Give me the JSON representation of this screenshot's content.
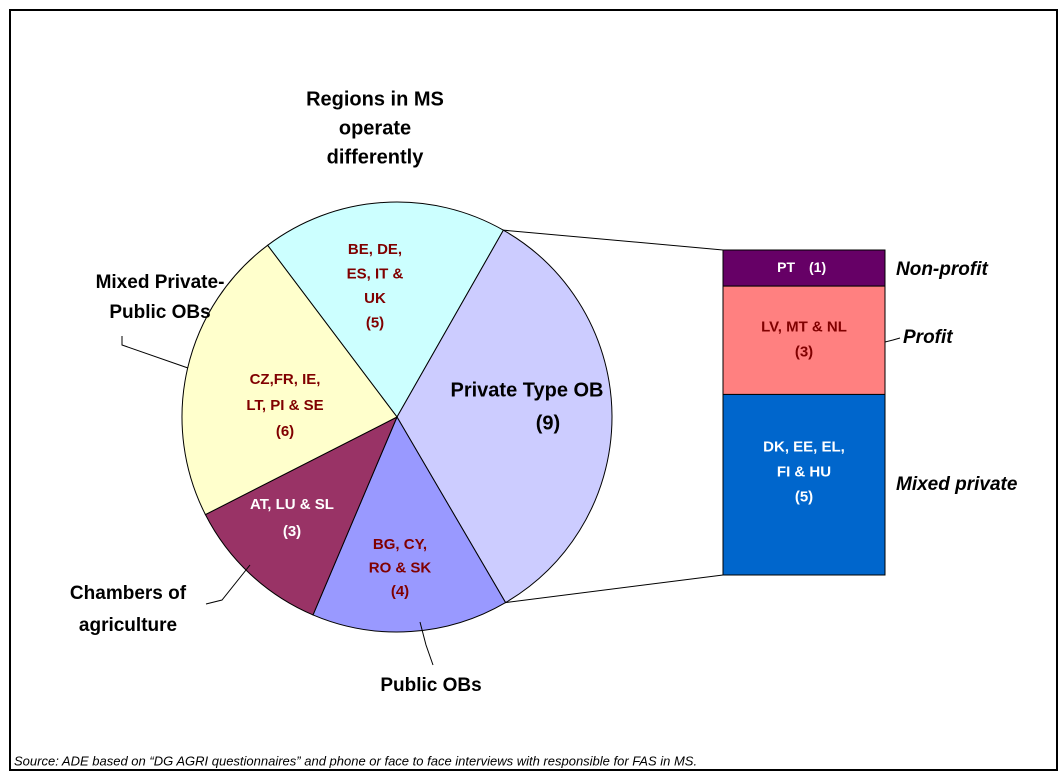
{
  "chart_data": {
    "type": "bar-of-pie",
    "categories": [
      [
        "Regions in MS",
        "operate",
        "differently"
      ],
      [
        "Private Type OB"
      ],
      [
        "Public OBs"
      ],
      [
        "Chambers of",
        "agriculture"
      ],
      [
        "Mixed Private-",
        "Public OBs"
      ]
    ],
    "values": [
      5,
      9,
      4,
      3,
      6
    ],
    "value_labels": [
      "(5)",
      "(9)",
      "(4)",
      "(3)",
      "(6)"
    ],
    "slice_labels": [
      [
        "BE, DE,",
        "ES, IT &",
        "UK"
      ],
      [],
      [
        "BG, CY,",
        "RO & SK"
      ],
      [
        "AT, LU & SL"
      ],
      [
        "CZ,FR, IE,",
        "LT, PI & SE"
      ]
    ],
    "colors": [
      "#ccffff",
      "#ccccff",
      "#9999ff",
      "#993366",
      "#ffffcc"
    ],
    "breakdown": {
      "of": 1,
      "categories": [
        "Non-profit",
        "Profit",
        "Mixed private"
      ],
      "values": [
        1,
        3,
        5
      ],
      "value_labels": [
        "(1)",
        "(3)",
        "(5)"
      ],
      "slice_labels": [
        [
          "PT"
        ],
        [
          "LV, MT & NL"
        ],
        [
          "DK, EE, EL,",
          "FI & HU"
        ]
      ],
      "colors": [
        "#660066",
        "#ff8080",
        "#0066cc"
      ]
    },
    "source": "Source: ADE based on “DG AGRI questionnaires” and phone or face to face interviews with responsible for FAS in MS."
  }
}
